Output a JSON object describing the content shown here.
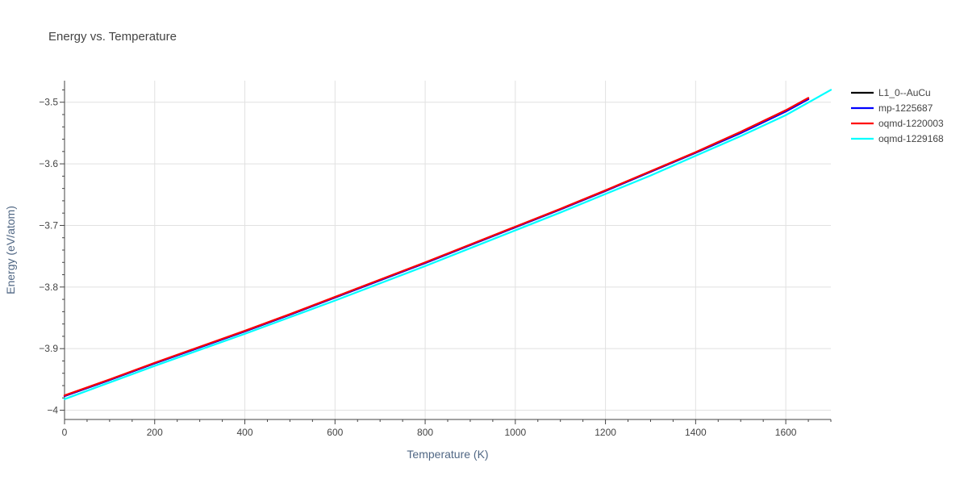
{
  "chart_data": {
    "type": "line",
    "title": "Energy vs. Temperature",
    "xlabel": "Temperature (K)",
    "ylabel": "Energy (eV/atom)",
    "xlim": [
      0,
      1700
    ],
    "ylim": [
      -4.015,
      -3.465
    ],
    "x_ticks": [
      0,
      200,
      400,
      600,
      800,
      1000,
      1200,
      1400,
      1600
    ],
    "x_tick_labels": [
      "0",
      "200",
      "400",
      "600",
      "800",
      "1000",
      "1200",
      "1400",
      "1600"
    ],
    "y_ticks": [
      -4.0,
      -3.9,
      -3.8,
      -3.7,
      -3.6,
      -3.5
    ],
    "y_tick_labels": [
      "−4",
      "−3.9",
      "−3.8",
      "−3.7",
      "−3.6",
      "−3.5"
    ],
    "grid": true,
    "legend_position": "top-right",
    "series": [
      {
        "name": "L1_0--AuCu",
        "color": "#000000",
        "x": [
          0,
          100,
          200,
          300,
          400,
          500,
          600,
          700,
          800,
          900,
          1000,
          1100,
          1200,
          1300,
          1400,
          1500,
          1600,
          1650
        ],
        "y": [
          -3.977,
          -3.951,
          -3.924,
          -3.898,
          -3.872,
          -3.845,
          -3.817,
          -3.789,
          -3.761,
          -3.732,
          -3.703,
          -3.674,
          -3.644,
          -3.613,
          -3.582,
          -3.55,
          -3.515,
          -3.495
        ]
      },
      {
        "name": "mp-1225687",
        "color": "#0000ff",
        "x": [
          0,
          100,
          200,
          300,
          400,
          500,
          600,
          700,
          800,
          900,
          1000,
          1100,
          1200,
          1300,
          1400,
          1500,
          1600,
          1650
        ],
        "y": [
          -3.977,
          -3.951,
          -3.924,
          -3.898,
          -3.872,
          -3.845,
          -3.817,
          -3.789,
          -3.761,
          -3.732,
          -3.703,
          -3.674,
          -3.644,
          -3.613,
          -3.582,
          -3.55,
          -3.515,
          -3.495
        ]
      },
      {
        "name": "oqmd-1220003",
        "color": "#ff0000",
        "x": [
          0,
          100,
          200,
          300,
          400,
          500,
          600,
          700,
          800,
          900,
          1000,
          1100,
          1200,
          1300,
          1400,
          1500,
          1600,
          1650
        ],
        "y": [
          -3.976,
          -3.95,
          -3.923,
          -3.897,
          -3.871,
          -3.844,
          -3.816,
          -3.788,
          -3.76,
          -3.731,
          -3.702,
          -3.673,
          -3.643,
          -3.612,
          -3.581,
          -3.548,
          -3.513,
          -3.493
        ]
      },
      {
        "name": "oqmd-1229168",
        "color": "#00ffff",
        "x": [
          0,
          100,
          200,
          300,
          400,
          500,
          600,
          700,
          800,
          900,
          1000,
          1100,
          1200,
          1300,
          1400,
          1500,
          1600,
          1700
        ],
        "y": [
          -3.982,
          -3.955,
          -3.928,
          -3.902,
          -3.876,
          -3.849,
          -3.822,
          -3.794,
          -3.766,
          -3.737,
          -3.708,
          -3.679,
          -3.649,
          -3.619,
          -3.587,
          -3.555,
          -3.521,
          -3.48
        ]
      }
    ]
  }
}
